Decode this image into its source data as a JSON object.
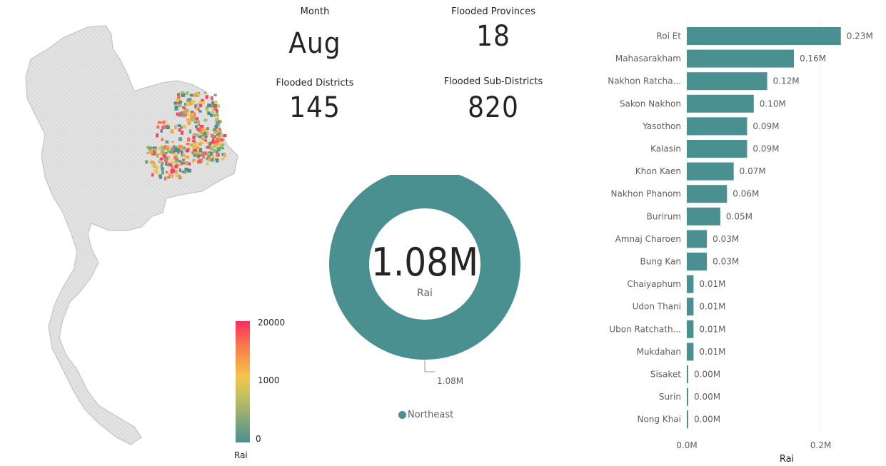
{
  "kpis": {
    "month": {
      "label": "Month",
      "value": "Aug"
    },
    "provinces": {
      "label": "Flooded Provinces",
      "value": "18"
    },
    "districts": {
      "label": "Flooded Districts",
      "value": "145"
    },
    "subdistricts": {
      "label": "Flooded Sub-Districts",
      "value": "820"
    }
  },
  "map": {
    "legend_title": "Rai",
    "legend_ticks": [
      "20000",
      "1000",
      "0"
    ],
    "colors": {
      "low": "#4a9090",
      "mid": "#f4c44a",
      "high": "#ff2b5e",
      "base": "#d9d9d9"
    }
  },
  "donut": {
    "center_value": "1.08M",
    "center_unit": "Rai",
    "slice_label": "1.08M",
    "legend_item": "Northeast",
    "color": "#4a9090"
  },
  "chart_data": [
    {
      "type": "pie",
      "categories": [
        "Northeast"
      ],
      "values": [
        1.08
      ],
      "value_unit": "M"
    },
    {
      "type": "bar",
      "orientation": "horizontal",
      "categories": [
        "Roi Et",
        "Mahasarakham",
        "Nakhon Ratcha...",
        "Sakon Nakhon",
        "Yasothon",
        "Kalasin",
        "Khon Kaen",
        "Nakhon Phanom",
        "Burirum",
        "Amnaj Charoen",
        "Bung Kan",
        "Chaiyaphum",
        "Udon Thani",
        "Ubon Ratchath...",
        "Mukdahan",
        "Sisaket",
        "Surin",
        "Nong Khai"
      ],
      "values": [
        0.23,
        0.16,
        0.12,
        0.1,
        0.09,
        0.09,
        0.07,
        0.06,
        0.05,
        0.03,
        0.03,
        0.01,
        0.01,
        0.01,
        0.01,
        0.0,
        0.0,
        0.0
      ],
      "data_labels": [
        "0.23M",
        "0.16M",
        "0.12M",
        "0.10M",
        "0.09M",
        "0.09M",
        "0.07M",
        "0.06M",
        "0.05M",
        "0.03M",
        "0.03M",
        "0.01M",
        "0.01M",
        "0.01M",
        "0.01M",
        "0.00M",
        "0.00M",
        "0.00M"
      ],
      "x_ticks": [
        "0.0M",
        "0.2M"
      ],
      "xlabel": "Rai",
      "xlim": [
        0,
        0.25
      ],
      "color": "#4a9090",
      "grid": true
    }
  ]
}
